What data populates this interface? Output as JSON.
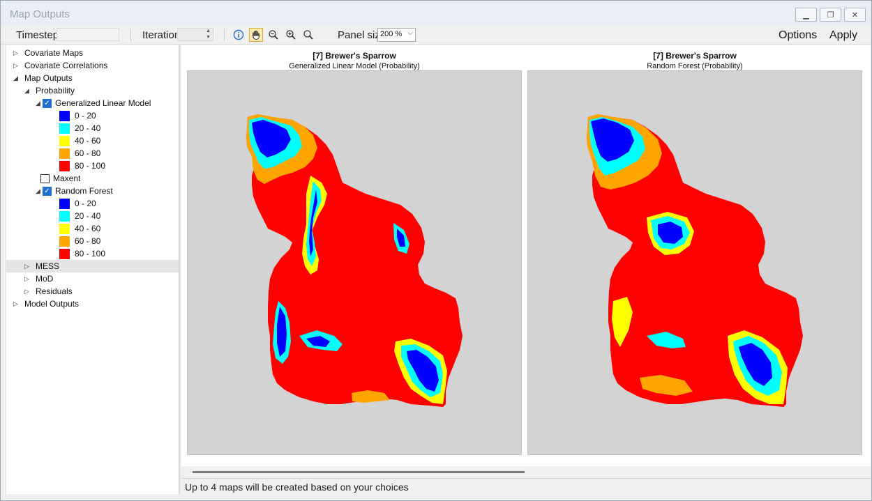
{
  "window": {
    "title": "Map Outputs"
  },
  "toolbar": {
    "timestep_label": "Timestep",
    "iteration_label": "Iteration",
    "panel_size_label": "Panel size",
    "panel_size_value": "200 %",
    "options_label": "Options",
    "apply_label": "Apply"
  },
  "tree": {
    "covariate_maps": "Covariate Maps",
    "covariate_correlations": "Covariate Correlations",
    "map_outputs": "Map Outputs",
    "probability": "Probability",
    "glm": "Generalized Linear Model",
    "maxent": "Maxent",
    "random_forest": "Random Forest",
    "mess": "MESS",
    "mod": "MoD",
    "residuals": "Residuals",
    "model_outputs": "Model Outputs",
    "legend": [
      {
        "label": "0 - 20",
        "color": "#0000ff"
      },
      {
        "label": "20 - 40",
        "color": "#00ffff"
      },
      {
        "label": "40 - 60",
        "color": "#ffff00"
      },
      {
        "label": "60 - 80",
        "color": "#ffa500"
      },
      {
        "label": "80 - 100",
        "color": "#ff0000"
      }
    ]
  },
  "maps": [
    {
      "title": "[7] Brewer's Sparrow",
      "subtitle": "Generalized Linear Model (Probability)"
    },
    {
      "title": "[7] Brewer's Sparrow",
      "subtitle": "Random Forest (Probability)"
    }
  ],
  "status": {
    "text": "Up to 4 maps will be created based on your choices"
  }
}
